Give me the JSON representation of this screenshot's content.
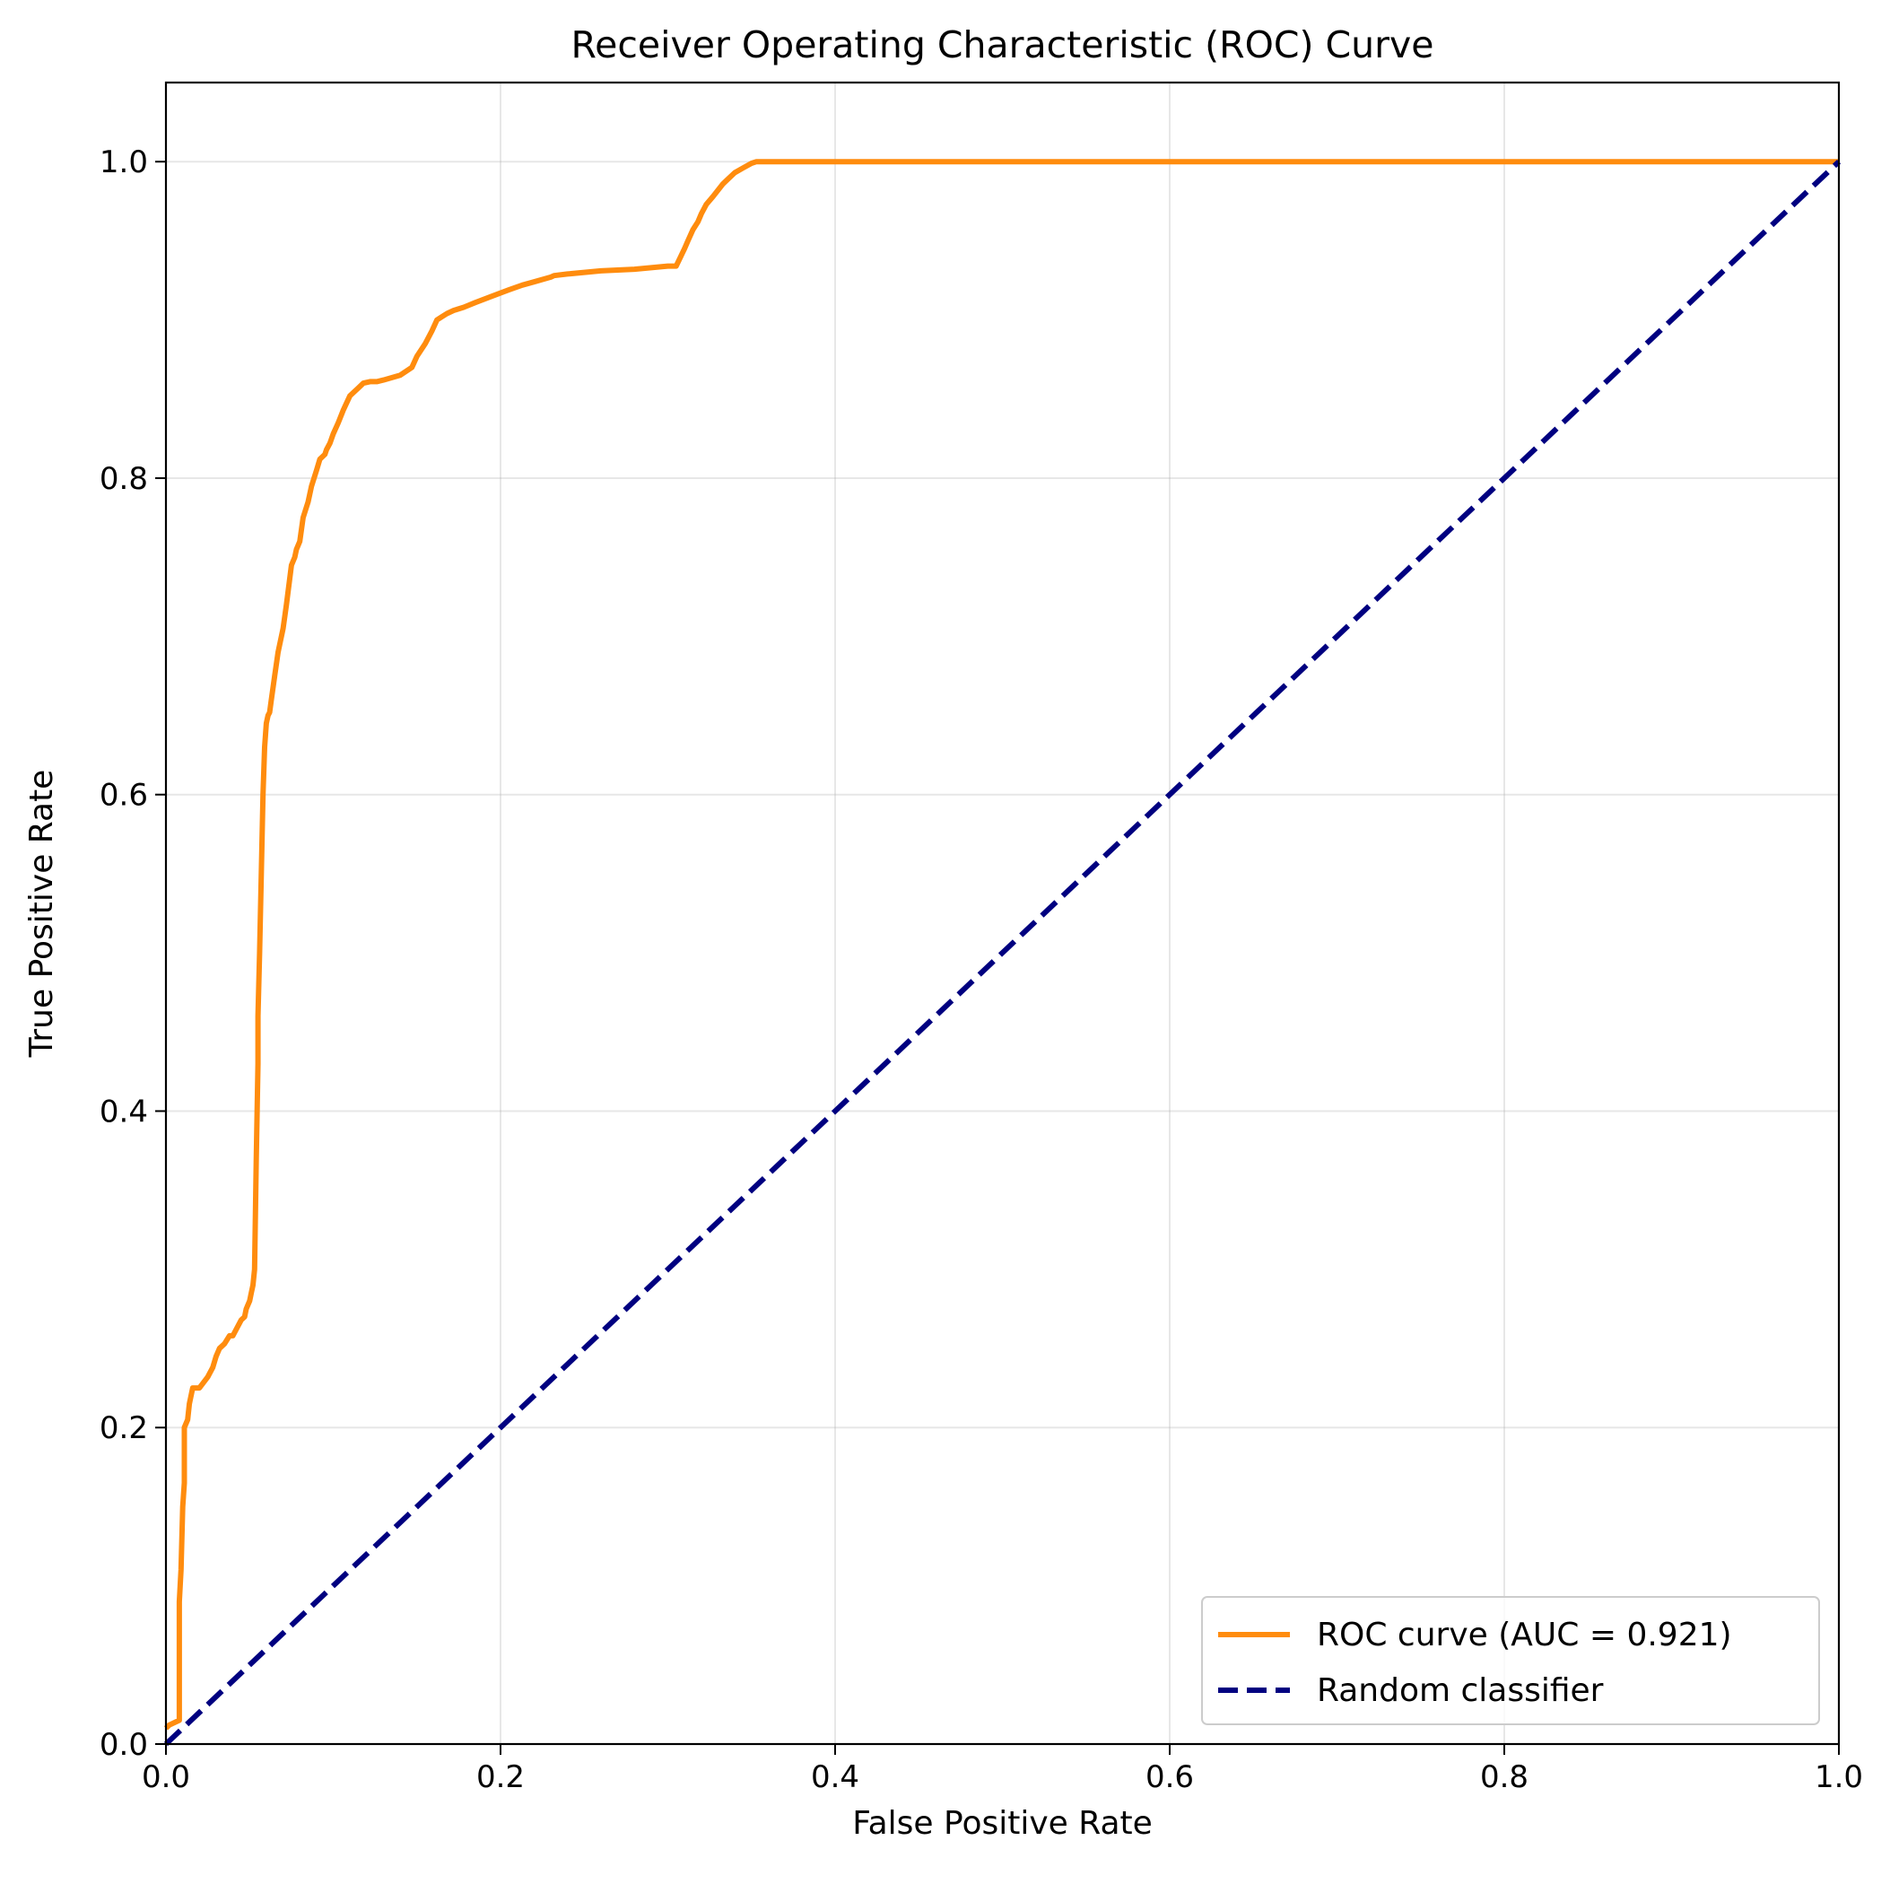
{
  "chart_data": {
    "type": "line",
    "title": "Receiver Operating Characteristic (ROC) Curve",
    "xlabel": "False Positive Rate",
    "ylabel": "True Positive Rate",
    "xlim": [
      0.0,
      1.0
    ],
    "ylim": [
      0.0,
      1.05
    ],
    "xticks": [
      "0.0",
      "0.2",
      "0.4",
      "0.6",
      "0.8",
      "1.0"
    ],
    "yticks": [
      "0.0",
      "0.2",
      "0.4",
      "0.6",
      "0.8",
      "1.0"
    ],
    "grid": true,
    "legend_position": "lower-right",
    "series": [
      {
        "name": "ROC curve (AUC = 0.921)",
        "color": "#ff8c0e",
        "style": "solid",
        "x": [
          0.0,
          0.002,
          0.008,
          0.008,
          0.009,
          0.01,
          0.011,
          0.011,
          0.013,
          0.014,
          0.016,
          0.018,
          0.02,
          0.025,
          0.028,
          0.03,
          0.032,
          0.035,
          0.038,
          0.04,
          0.042,
          0.045,
          0.047,
          0.048,
          0.05,
          0.051,
          0.052,
          0.053,
          0.054,
          0.055,
          0.055,
          0.056,
          0.057,
          0.058,
          0.059,
          0.06,
          0.061,
          0.062,
          0.063,
          0.065,
          0.067,
          0.07,
          0.072,
          0.075,
          0.077,
          0.078,
          0.08,
          0.082,
          0.085,
          0.087,
          0.09,
          0.092,
          0.095,
          0.096,
          0.098,
          0.1,
          0.103,
          0.106,
          0.11,
          0.115,
          0.118,
          0.122,
          0.126,
          0.13,
          0.14,
          0.147,
          0.15,
          0.155,
          0.159,
          0.162,
          0.165,
          0.168,
          0.172,
          0.178,
          0.185,
          0.195,
          0.205,
          0.213,
          0.22,
          0.23,
          0.232,
          0.24,
          0.26,
          0.28,
          0.3,
          0.305,
          0.31,
          0.312,
          0.315,
          0.318,
          0.32,
          0.323,
          0.327,
          0.33,
          0.333,
          0.336,
          0.34,
          0.345,
          0.35,
          0.353,
          0.36,
          0.4,
          0.5,
          0.6,
          0.7,
          0.8,
          0.9,
          1.0
        ],
        "y": [
          0.01,
          0.012,
          0.015,
          0.09,
          0.11,
          0.15,
          0.165,
          0.2,
          0.205,
          0.215,
          0.225,
          0.225,
          0.225,
          0.232,
          0.238,
          0.245,
          0.25,
          0.253,
          0.258,
          0.258,
          0.262,
          0.268,
          0.27,
          0.275,
          0.28,
          0.285,
          0.29,
          0.3,
          0.37,
          0.43,
          0.46,
          0.5,
          0.55,
          0.6,
          0.63,
          0.645,
          0.65,
          0.652,
          0.66,
          0.675,
          0.69,
          0.705,
          0.72,
          0.745,
          0.75,
          0.755,
          0.76,
          0.775,
          0.785,
          0.795,
          0.805,
          0.812,
          0.815,
          0.818,
          0.822,
          0.828,
          0.835,
          0.843,
          0.852,
          0.857,
          0.86,
          0.861,
          0.861,
          0.862,
          0.865,
          0.87,
          0.877,
          0.885,
          0.893,
          0.9,
          0.902,
          0.904,
          0.906,
          0.908,
          0.911,
          0.915,
          0.919,
          0.922,
          0.924,
          0.927,
          0.928,
          0.929,
          0.931,
          0.932,
          0.934,
          0.934,
          0.945,
          0.95,
          0.957,
          0.962,
          0.967,
          0.973,
          0.978,
          0.982,
          0.986,
          0.989,
          0.993,
          0.996,
          0.999,
          1.0,
          1.0,
          1.0,
          1.0,
          1.0,
          1.0,
          1.0,
          1.0,
          1.0
        ]
      },
      {
        "name": "Random classifier",
        "color": "#000080",
        "style": "dashed",
        "x": [
          0.0,
          1.0
        ],
        "y": [
          0.0,
          1.0
        ]
      }
    ]
  }
}
